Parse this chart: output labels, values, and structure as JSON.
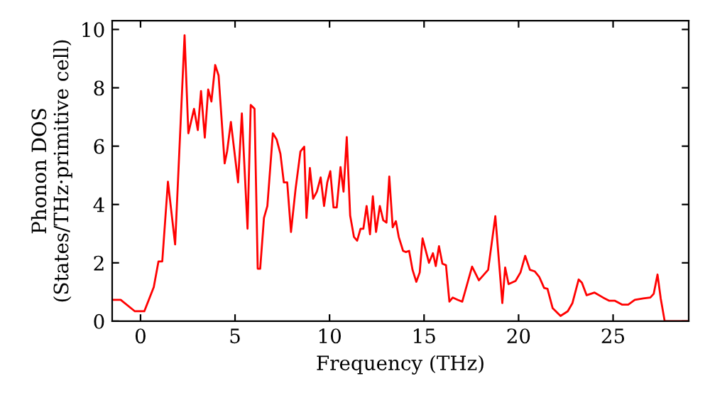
{
  "chart_data": {
    "type": "line",
    "xlabel": "Frequency (THz)",
    "ylabel": "Phonon DOS\n(States/THz·primitive cell)",
    "xlim": [
      -1.5,
      29
    ],
    "ylim": [
      0,
      10.3
    ],
    "xticks": [
      0,
      5,
      10,
      15,
      20,
      25
    ],
    "yticks": [
      0,
      2,
      4,
      6,
      8,
      10
    ],
    "grid": false,
    "legend": false,
    "marker": "none",
    "line_style": "solid",
    "series": [
      {
        "color": "#ff0000",
        "x": [
          -1.43,
          -1.05,
          -0.3,
          0.2,
          0.7,
          0.95,
          1.15,
          1.45,
          1.83,
          2.33,
          2.53,
          2.83,
          3.03,
          3.2,
          3.4,
          3.58,
          3.75,
          3.95,
          4.13,
          4.45,
          4.58,
          4.78,
          5.16,
          5.36,
          5.66,
          5.83,
          6.03,
          6.2,
          6.33,
          6.53,
          6.71,
          7.0,
          7.2,
          7.4,
          7.58,
          7.76,
          7.96,
          8.2,
          8.46,
          8.66,
          8.78,
          8.96,
          9.13,
          9.33,
          9.53,
          9.71,
          9.88,
          10.04,
          10.21,
          10.38,
          10.58,
          10.74,
          10.91,
          11.09,
          11.29,
          11.46,
          11.64,
          11.79,
          11.96,
          12.14,
          12.29,
          12.46,
          12.66,
          12.84,
          13.01,
          13.16,
          13.34,
          13.51,
          13.66,
          13.89,
          14.04,
          14.21,
          14.39,
          14.59,
          14.77,
          14.92,
          15.26,
          15.47,
          15.62,
          15.79,
          15.97,
          16.16,
          16.34,
          16.52,
          16.79,
          17.02,
          17.54,
          17.9,
          18.39,
          18.77,
          19.14,
          19.29,
          19.47,
          19.84,
          20.1,
          20.35,
          20.6,
          20.85,
          21.1,
          21.35,
          21.53,
          21.8,
          22.22,
          22.6,
          22.85,
          23.18,
          23.35,
          23.6,
          24.02,
          24.47,
          24.8,
          25.1,
          25.47,
          25.8,
          26.15,
          26.6,
          26.97,
          27.15,
          27.35,
          27.52,
          27.73,
          29
        ],
        "values": [
          0.73,
          0.73,
          0.34,
          0.34,
          1.17,
          2.05,
          2.05,
          4.78,
          2.63,
          9.8,
          6.44,
          7.28,
          6.55,
          7.89,
          6.29,
          7.94,
          7.53,
          8.78,
          8.42,
          5.41,
          5.82,
          6.83,
          4.76,
          7.12,
          3.17,
          7.41,
          7.28,
          1.8,
          1.8,
          3.54,
          3.95,
          6.44,
          6.23,
          5.74,
          4.76,
          4.76,
          3.06,
          4.52,
          5.82,
          5.98,
          3.54,
          5.25,
          4.2,
          4.44,
          4.93,
          3.95,
          4.76,
          5.14,
          3.9,
          3.9,
          5.28,
          4.44,
          6.31,
          3.62,
          2.89,
          2.76,
          3.17,
          3.17,
          3.95,
          2.98,
          4.28,
          3.06,
          3.95,
          3.46,
          3.38,
          4.96,
          3.22,
          3.43,
          2.89,
          2.41,
          2.37,
          2.41,
          1.76,
          1.35,
          1.67,
          2.84,
          2.0,
          2.33,
          1.89,
          2.57,
          1.97,
          1.92,
          0.67,
          0.81,
          0.73,
          0.67,
          1.87,
          1.4,
          1.76,
          3.6,
          0.62,
          1.84,
          1.27,
          1.38,
          1.67,
          2.24,
          1.76,
          1.71,
          1.51,
          1.14,
          1.11,
          0.45,
          0.18,
          0.34,
          0.62,
          1.43,
          1.32,
          0.89,
          0.98,
          0.81,
          0.7,
          0.7,
          0.57,
          0.57,
          0.73,
          0.78,
          0.81,
          0.94,
          1.6,
          0.78,
          0.0,
          0.0
        ]
      }
    ]
  }
}
